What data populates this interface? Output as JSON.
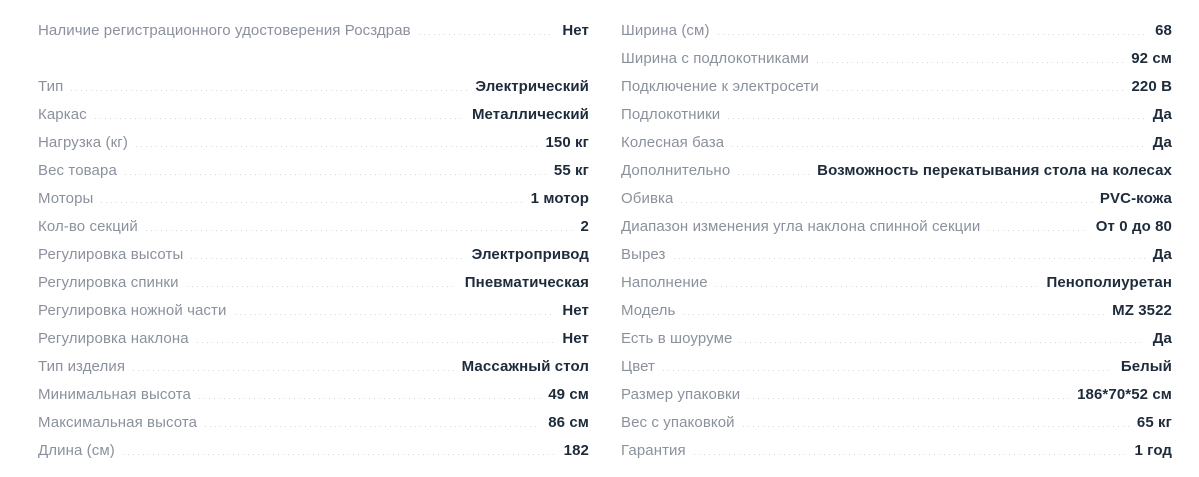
{
  "colors": {
    "label_text": "#8b919c",
    "value_text": "#1d2b3a",
    "leader_dots": "#d6dade",
    "background": "#ffffff"
  },
  "specs": {
    "left": [
      {
        "label": "Наличие регистрационного удостоверения Росздрав",
        "value": "Нет"
      },
      {
        "spacer": true
      },
      {
        "label": "Тип",
        "value": "Электрический"
      },
      {
        "label": "Каркас",
        "value": "Металлический"
      },
      {
        "label": "Нагрузка (кг)",
        "value": "150 кг"
      },
      {
        "label": "Вес товара",
        "value": "55 кг"
      },
      {
        "label": "Моторы",
        "value": "1 мотор"
      },
      {
        "label": "Кол-во секций",
        "value": "2"
      },
      {
        "label": "Регулировка высоты",
        "value": "Электропривод"
      },
      {
        "label": "Регулировка спинки",
        "value": "Пневматическая"
      },
      {
        "label": "Регулировка ножной части",
        "value": "Нет"
      },
      {
        "label": "Регулировка наклона",
        "value": "Нет"
      },
      {
        "label": "Тип изделия",
        "value": "Массажный стол"
      },
      {
        "label": "Минимальная высота",
        "value": "49 см"
      },
      {
        "label": "Максимальная высота",
        "value": "86 см"
      },
      {
        "label": "Длина (см)",
        "value": "182"
      }
    ],
    "right": [
      {
        "label": "Ширина (см)",
        "value": "68"
      },
      {
        "label": "Ширина с подлокотниками",
        "value": "92 см"
      },
      {
        "label": "Подключение к электросети",
        "value": "220 В"
      },
      {
        "label": "Подлокотники",
        "value": "Да"
      },
      {
        "label": "Колесная база",
        "value": "Да"
      },
      {
        "label": "Дополнительно",
        "value": "Возможность перекатывания стола на колесах"
      },
      {
        "label": "Обивка",
        "value": "PVC-кожа"
      },
      {
        "label": "Диапазон изменения угла наклона спинной секции",
        "value": "От 0 до 80"
      },
      {
        "label": "Вырез",
        "value": "Да"
      },
      {
        "label": "Наполнение",
        "value": "Пенополиуретан"
      },
      {
        "label": "Модель",
        "value": "MZ 3522"
      },
      {
        "label": "Есть в шоуруме",
        "value": "Да"
      },
      {
        "label": "Цвет",
        "value": "Белый"
      },
      {
        "label": "Размер упаковки",
        "value": "186*70*52 см"
      },
      {
        "label": "Вес с упаковкой",
        "value": "65 кг"
      },
      {
        "label": "Гарантия",
        "value": "1 год"
      }
    ]
  }
}
